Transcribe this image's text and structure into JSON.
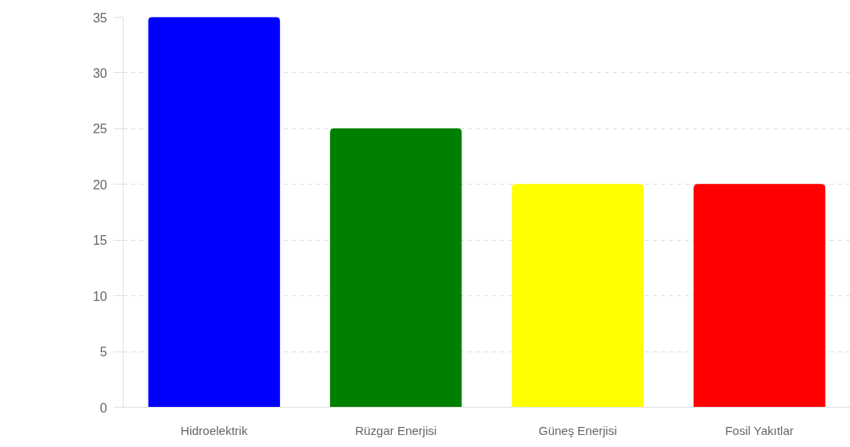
{
  "chart_data": {
    "type": "bar",
    "categories": [
      "Hidroelektrik",
      "Rüzgar Enerjisi",
      "Güneş Enerjisi",
      "Fosil Yakıtlar"
    ],
    "values": [
      35,
      25,
      20,
      20
    ],
    "colors": [
      "#0000ff",
      "#008000",
      "#ffff00",
      "#ff0000"
    ],
    "ylim": [
      0,
      35
    ],
    "yticks": [
      0,
      5,
      10,
      15,
      20,
      25,
      30,
      35
    ],
    "grid": "y"
  }
}
